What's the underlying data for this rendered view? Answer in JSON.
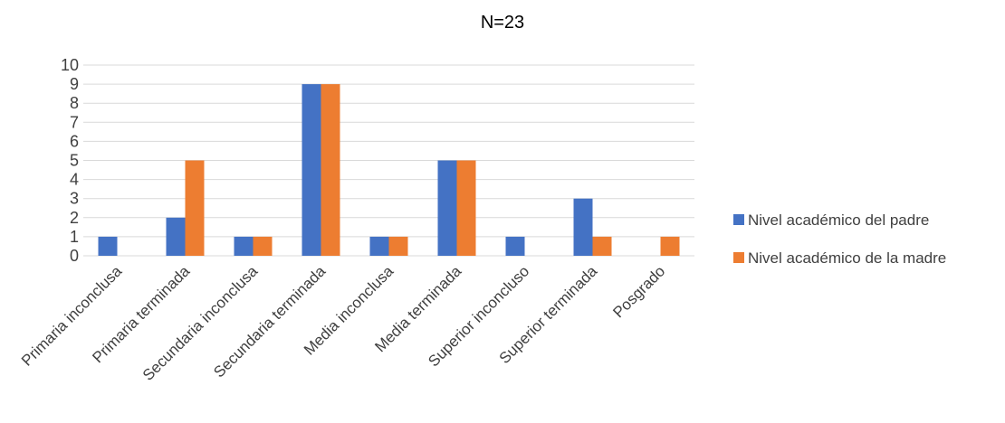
{
  "chart_data": {
    "type": "bar",
    "title": "N=23",
    "xlabel": "",
    "ylabel": "",
    "categories": [
      "Primaria inconclusa",
      "Primaria terminada",
      "Secundaria inconclusa",
      "Secundaria terminada",
      "Media inconclusa",
      "Media terminada",
      "Superior inconcluso",
      "Superior terminada",
      "Posgrado"
    ],
    "series": [
      {
        "name": "Nivel académico del padre",
        "color": "#4472c4",
        "values": [
          1,
          2,
          1,
          9,
          1,
          5,
          1,
          3,
          0
        ]
      },
      {
        "name": "Nivel académico de la madre",
        "color": "#ed7d31",
        "values": [
          0,
          5,
          1,
          9,
          1,
          5,
          0,
          1,
          1
        ]
      }
    ],
    "ylim": [
      0,
      10
    ],
    "yticks": [
      0,
      1,
      2,
      3,
      4,
      5,
      6,
      7,
      8,
      9,
      10
    ],
    "grid": true,
    "legend_position": "right"
  }
}
